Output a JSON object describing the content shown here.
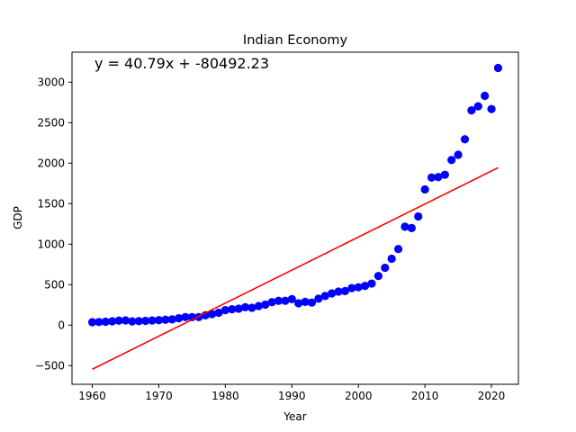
{
  "chart_data": {
    "type": "scatter",
    "title": "Indian Economy",
    "xlabel": "Year",
    "ylabel": "GDP",
    "annotation": "y = 40.79x + -80492.23",
    "xlim": [
      1956.95,
      2024.05
    ],
    "ylim": [
      -730,
      3370
    ],
    "x_ticks": [
      1960,
      1970,
      1980,
      1990,
      2000,
      2010,
      2020
    ],
    "y_ticks": [
      -500,
      0,
      500,
      1000,
      1500,
      2000,
      2500,
      3000
    ],
    "grid": false,
    "series": [
      {
        "type": "scatter",
        "color": "#0000ff",
        "x": [
          1960,
          1961,
          1962,
          1963,
          1964,
          1965,
          1966,
          1967,
          1968,
          1969,
          1970,
          1971,
          1972,
          1973,
          1974,
          1975,
          1976,
          1977,
          1978,
          1979,
          1980,
          1981,
          1982,
          1983,
          1984,
          1985,
          1986,
          1987,
          1988,
          1989,
          1990,
          1991,
          1992,
          1993,
          1994,
          1995,
          1996,
          1997,
          1998,
          1999,
          2000,
          2001,
          2002,
          2003,
          2004,
          2005,
          2006,
          2007,
          2008,
          2009,
          2010,
          2011,
          2012,
          2013,
          2014,
          2015,
          2016,
          2017,
          2018,
          2019,
          2020,
          2021
        ],
        "y": [
          37,
          39,
          42,
          48,
          56,
          59,
          46,
          50,
          53,
          58,
          62,
          67,
          71,
          86,
          100,
          99,
          100,
          122,
          137,
          154,
          186,
          196,
          204,
          222,
          215,
          236,
          254,
          284,
          301,
          301,
          321,
          270,
          288,
          279,
          327,
          360,
          392,
          415,
          421,
          458,
          468,
          485,
          514,
          607,
          709,
          820,
          940,
          1216,
          1199,
          1342,
          1676,
          1823,
          1828,
          1857,
          2039,
          2103,
          2295,
          2652,
          2702,
          2831,
          2668,
          3176
        ]
      },
      {
        "type": "line",
        "color": "#ff0000",
        "slope": 40.79,
        "intercept": -80492.23,
        "x": [
          1960,
          2021
        ]
      }
    ]
  }
}
